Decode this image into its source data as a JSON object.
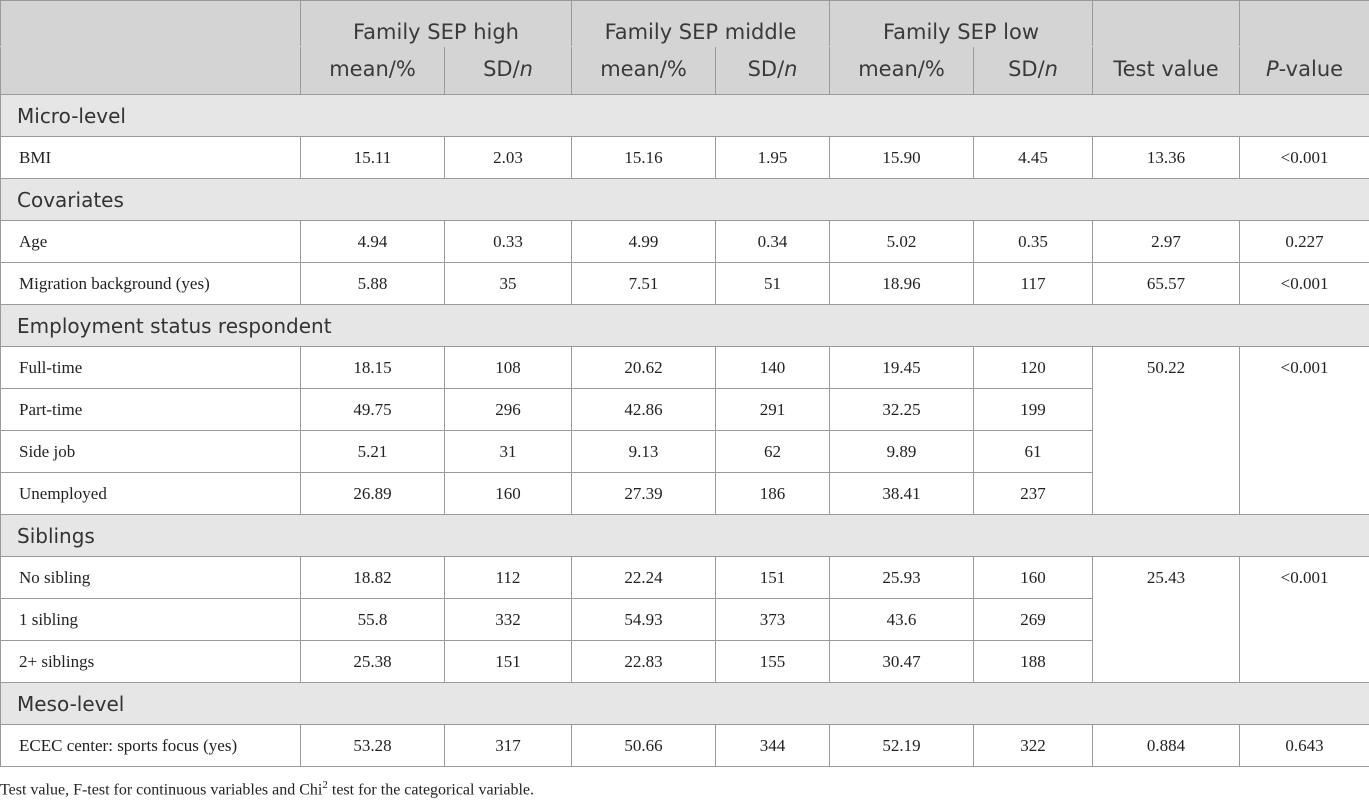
{
  "header": {
    "groups": [
      "Family SEP high",
      "Family SEP middle",
      "Family SEP low"
    ],
    "mean_label": "mean/%",
    "sd_label": "SD/",
    "n_label": "n",
    "test_value": "Test value",
    "p_prefix": "P",
    "p_suffix": "-value"
  },
  "sections": {
    "micro": "Micro-level",
    "covariates": "Covariates",
    "employment": "Employment status respondent",
    "siblings": "Siblings",
    "meso": "Meso-level"
  },
  "rows": {
    "bmi": {
      "label": "BMI",
      "values": [
        "15.11",
        "2.03",
        "15.16",
        "1.95",
        "15.90",
        "4.45",
        "13.36",
        "<0.001"
      ]
    },
    "age": {
      "label": "Age",
      "values": [
        "4.94",
        "0.33",
        "4.99",
        "0.34",
        "5.02",
        "0.35",
        "2.97",
        "0.227"
      ]
    },
    "migration": {
      "label": "Migration background (yes)",
      "values": [
        "5.88",
        "35",
        "7.51",
        "51",
        "18.96",
        "117",
        "65.57",
        "<0.001"
      ]
    },
    "fulltime": {
      "label": "Full-time",
      "values": [
        "18.15",
        "108",
        "20.62",
        "140",
        "19.45",
        "120"
      ]
    },
    "parttime": {
      "label": "Part-time",
      "values": [
        "49.75",
        "296",
        "42.86",
        "291",
        "32.25",
        "199"
      ]
    },
    "sidejob": {
      "label": "Side job",
      "values": [
        "5.21",
        "31",
        "9.13",
        "62",
        "9.89",
        "61"
      ]
    },
    "unemployed": {
      "label": "Unemployed",
      "values": [
        "26.89",
        "160",
        "27.39",
        "186",
        "38.41",
        "237"
      ]
    },
    "employment_test": {
      "test": "50.22",
      "p": "<0.001"
    },
    "nosibling": {
      "label": "No sibling",
      "values": [
        "18.82",
        "112",
        "22.24",
        "151",
        "25.93",
        "160"
      ]
    },
    "onesibling": {
      "label": "1 sibling",
      "values": [
        "55.8",
        "332",
        "54.93",
        "373",
        "43.6",
        "269"
      ]
    },
    "twoplus": {
      "label": "2+ siblings",
      "values": [
        "25.38",
        "151",
        "22.83",
        "155",
        "30.47",
        "188"
      ]
    },
    "siblings_test": {
      "test": "25.43",
      "p": "<0.001"
    },
    "ecec": {
      "label": "ECEC center: sports focus (yes)",
      "values": [
        "53.28",
        "317",
        "50.66",
        "344",
        "52.19",
        "322",
        "0.884",
        "0.643"
      ]
    }
  },
  "footnote": {
    "before": "Test value, F-test for continuous variables and Chi",
    "sup": "2",
    "after": " test for the categorical variable."
  }
}
